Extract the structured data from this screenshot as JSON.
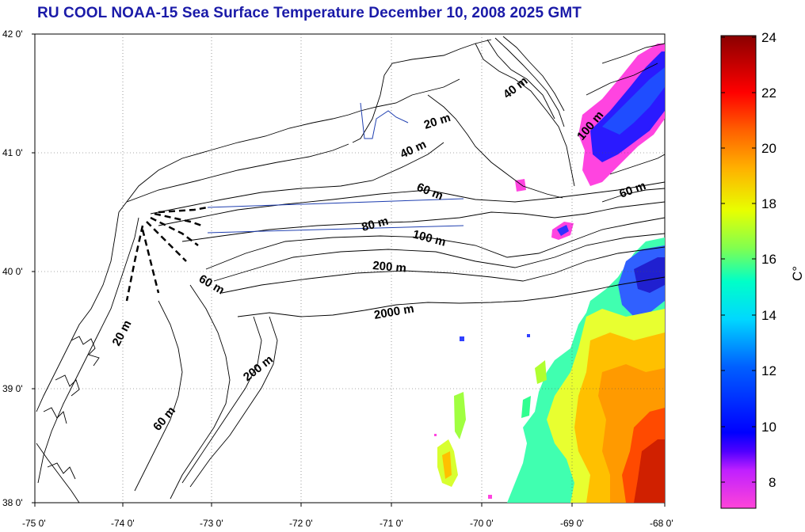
{
  "title": "RU COOL  NOAA-15 Sea Surface Temperature December 10, 2008 2025 GMT",
  "map": {
    "lat_ticks": [
      "42 0'",
      "41 0'",
      "40 0'",
      "39 0'",
      "38 0'"
    ],
    "lon_ticks": [
      "-75 0'",
      "-74 0'",
      "-73 0'",
      "-72 0'",
      "-71 0'",
      "-70 0'",
      "-69 0'",
      "-68 0'"
    ],
    "contour_labels": [
      "40 m",
      "20 m",
      "40 m",
      "100 m",
      "60 m",
      "60 m",
      "80 m",
      "100 m",
      "200 m",
      "2000 m",
      "60 m",
      "20 m",
      "200 m",
      "60 m"
    ]
  },
  "colorbar": {
    "unit": "C°",
    "ticks": [
      "24",
      "22",
      "20",
      "18",
      "16",
      "14",
      "12",
      "10",
      "8"
    ],
    "range": [
      7,
      24
    ]
  },
  "colors": {
    "title": "#1a1aa8",
    "land_lines": "#000000",
    "transect": "#1f3fb0"
  }
}
